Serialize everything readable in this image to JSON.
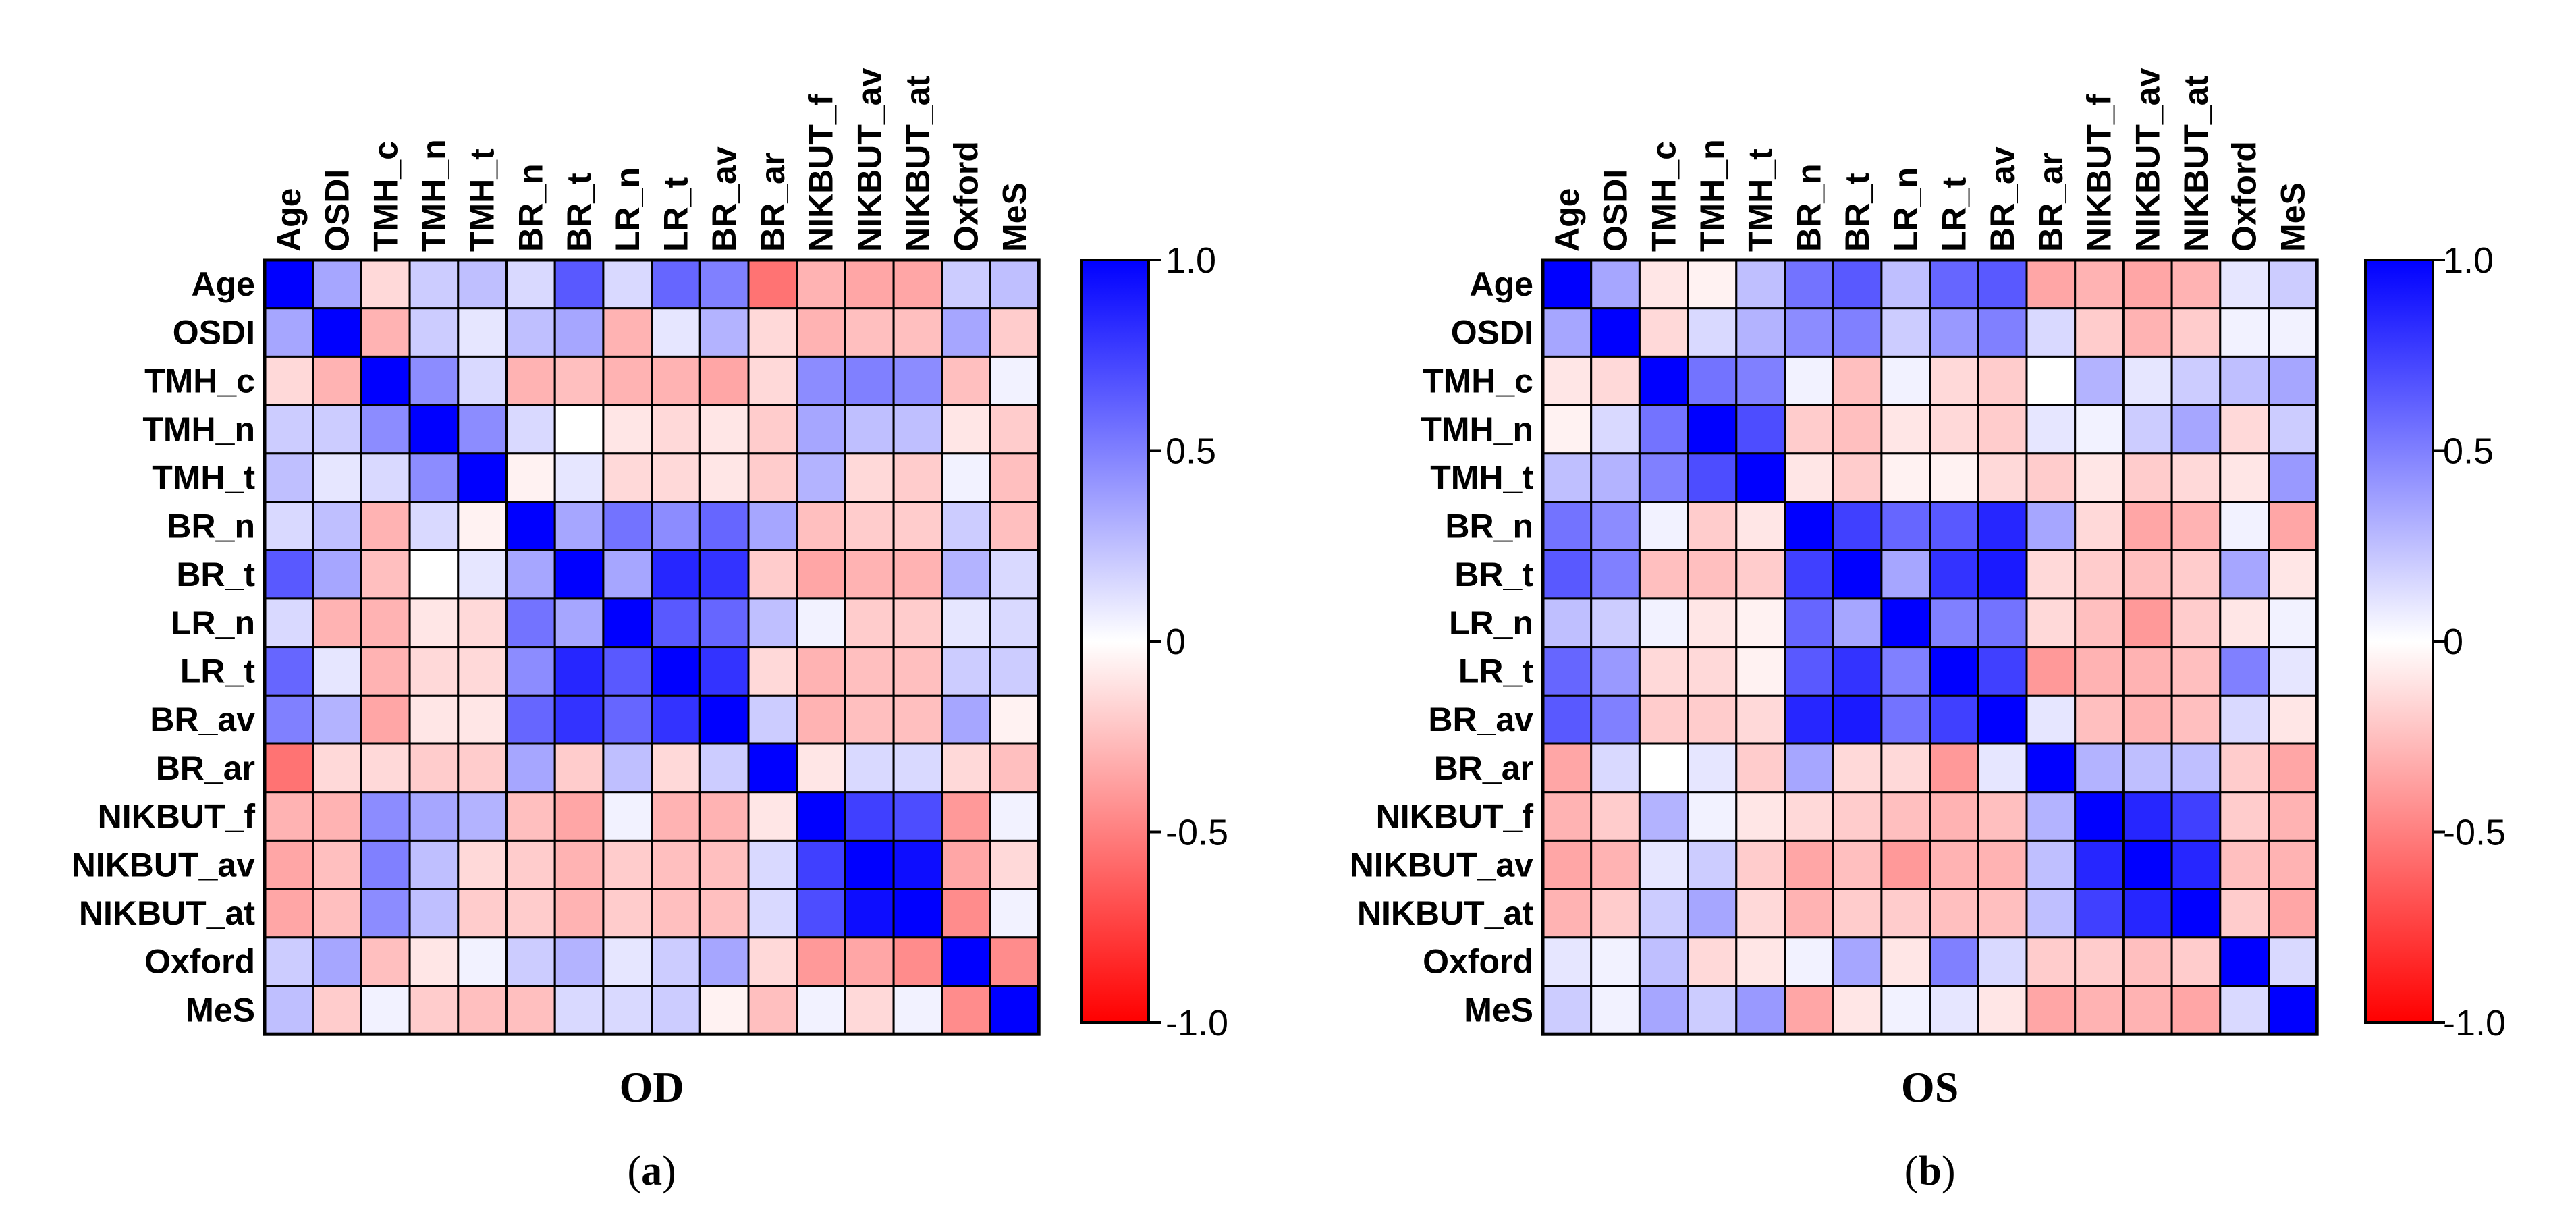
{
  "chart_data": [
    {
      "type": "heatmap",
      "title": "OD",
      "caption_letter": "a",
      "labels": [
        "Age",
        "OSDI",
        "TMH_c",
        "TMH_n",
        "TMH_t",
        "BR_n",
        "BR_t",
        "LR_n",
        "LR_t",
        "BR_av",
        "BR_ar",
        "NIKBUT_f",
        "NIKBUT_av",
        "NIKBUT_at",
        "Oxford",
        "MeS"
      ],
      "colorbar": {
        "range": [
          -1.0,
          1.0
        ],
        "ticks": [
          "1.0",
          "0.5",
          "0",
          "-0.5",
          "-1.0"
        ],
        "tick_values": [
          1.0,
          0.5,
          0,
          -0.5,
          -1.0
        ],
        "colors": {
          "low": "#ff0000",
          "mid": "#ffffff",
          "high": "#0000ff"
        }
      },
      "matrix": [
        [
          1.0,
          0.35,
          -0.15,
          0.2,
          0.25,
          0.15,
          0.65,
          0.15,
          0.6,
          0.5,
          -0.55,
          -0.3,
          -0.35,
          -0.35,
          0.2,
          0.25
        ],
        [
          0.35,
          1.0,
          -0.3,
          0.2,
          0.1,
          0.25,
          0.35,
          -0.3,
          0.1,
          0.3,
          -0.15,
          -0.3,
          -0.25,
          -0.25,
          0.35,
          -0.2
        ],
        [
          -0.15,
          -0.3,
          1.0,
          0.45,
          0.15,
          -0.3,
          -0.25,
          -0.3,
          -0.3,
          -0.35,
          -0.15,
          0.45,
          0.5,
          0.45,
          -0.25,
          0.05
        ],
        [
          0.2,
          0.2,
          0.45,
          1.0,
          0.45,
          0.15,
          0.0,
          -0.1,
          -0.15,
          -0.1,
          -0.2,
          0.35,
          0.25,
          0.25,
          -0.1,
          -0.2
        ],
        [
          0.25,
          0.1,
          0.15,
          0.45,
          1.0,
          -0.05,
          0.1,
          -0.15,
          -0.15,
          -0.1,
          -0.2,
          0.3,
          -0.15,
          -0.2,
          0.05,
          -0.25
        ],
        [
          0.15,
          0.25,
          -0.3,
          0.15,
          -0.05,
          1.0,
          0.35,
          0.55,
          0.45,
          0.6,
          0.35,
          -0.25,
          -0.2,
          -0.2,
          0.2,
          -0.25
        ],
        [
          0.65,
          0.35,
          -0.25,
          0.0,
          0.1,
          0.35,
          1.0,
          0.35,
          0.85,
          0.8,
          -0.2,
          -0.35,
          -0.3,
          -0.3,
          0.3,
          0.15
        ],
        [
          0.15,
          -0.3,
          -0.3,
          -0.1,
          -0.15,
          0.55,
          0.35,
          1.0,
          0.65,
          0.6,
          0.25,
          0.05,
          -0.2,
          -0.2,
          0.1,
          0.15
        ],
        [
          0.6,
          0.1,
          -0.3,
          -0.15,
          -0.15,
          0.45,
          0.85,
          0.65,
          1.0,
          0.8,
          -0.15,
          -0.3,
          -0.25,
          -0.25,
          0.2,
          0.2
        ],
        [
          0.5,
          0.3,
          -0.35,
          -0.1,
          -0.1,
          0.6,
          0.8,
          0.6,
          0.8,
          1.0,
          0.2,
          -0.3,
          -0.25,
          -0.25,
          0.35,
          -0.05
        ],
        [
          -0.55,
          -0.15,
          -0.15,
          -0.2,
          -0.2,
          0.35,
          -0.2,
          0.25,
          -0.15,
          0.2,
          1.0,
          -0.1,
          0.15,
          0.15,
          -0.15,
          -0.25
        ],
        [
          -0.3,
          -0.3,
          0.45,
          0.35,
          0.3,
          -0.25,
          -0.35,
          0.05,
          -0.3,
          -0.3,
          -0.1,
          1.0,
          0.75,
          0.7,
          -0.4,
          0.05
        ],
        [
          -0.35,
          -0.25,
          0.5,
          0.25,
          -0.15,
          -0.2,
          -0.3,
          -0.2,
          -0.25,
          -0.25,
          0.15,
          0.75,
          1.0,
          0.95,
          -0.35,
          -0.15
        ],
        [
          -0.35,
          -0.25,
          0.45,
          0.25,
          -0.2,
          -0.2,
          -0.3,
          -0.2,
          -0.25,
          -0.25,
          0.15,
          0.7,
          0.95,
          1.0,
          -0.45,
          0.05
        ],
        [
          0.2,
          0.35,
          -0.25,
          -0.1,
          0.05,
          0.2,
          0.3,
          0.1,
          0.2,
          0.35,
          -0.15,
          -0.4,
          -0.35,
          -0.45,
          1.0,
          -0.45
        ],
        [
          0.25,
          -0.2,
          0.05,
          -0.2,
          -0.25,
          -0.25,
          0.15,
          0.15,
          0.2,
          -0.05,
          -0.25,
          0.05,
          -0.15,
          0.05,
          -0.45,
          1.0
        ]
      ]
    },
    {
      "type": "heatmap",
      "title": "OS",
      "caption_letter": "b",
      "labels": [
        "Age",
        "OSDI",
        "TMH_c",
        "TMH_n",
        "TMH_t",
        "BR_n",
        "BR_t",
        "LR_n",
        "LR_t",
        "BR_av",
        "BR_ar",
        "NIKBUT_f",
        "NIKBUT_av",
        "NIKBUT_at",
        "Oxford",
        "MeS"
      ],
      "colorbar": {
        "range": [
          -1.0,
          1.0
        ],
        "ticks": [
          "1.0",
          "0.5",
          "0",
          "-0.5",
          "-1.0"
        ],
        "tick_values": [
          1.0,
          0.5,
          0,
          -0.5,
          -1.0
        ],
        "colors": {
          "low": "#ff0000",
          "mid": "#ffffff",
          "high": "#0000ff"
        }
      },
      "matrix": [
        [
          1.0,
          0.35,
          -0.1,
          -0.05,
          0.25,
          0.55,
          0.65,
          0.25,
          0.6,
          0.65,
          -0.35,
          -0.3,
          -0.35,
          -0.3,
          0.1,
          0.2
        ],
        [
          0.35,
          1.0,
          -0.15,
          0.15,
          0.3,
          0.45,
          0.5,
          0.2,
          0.4,
          0.5,
          0.15,
          -0.2,
          -0.3,
          -0.2,
          0.05,
          0.05
        ],
        [
          -0.1,
          -0.15,
          1.0,
          0.55,
          0.5,
          0.05,
          -0.25,
          0.05,
          -0.15,
          -0.2,
          0.0,
          0.3,
          0.1,
          0.2,
          0.25,
          0.35
        ],
        [
          -0.05,
          0.15,
          0.55,
          1.0,
          0.7,
          -0.2,
          -0.25,
          -0.1,
          -0.15,
          -0.2,
          0.1,
          0.05,
          0.2,
          0.35,
          -0.15,
          0.2
        ],
        [
          0.25,
          0.3,
          0.5,
          0.7,
          1.0,
          -0.1,
          -0.2,
          -0.05,
          -0.05,
          -0.15,
          -0.2,
          -0.1,
          -0.2,
          -0.15,
          -0.1,
          0.4
        ],
        [
          0.55,
          0.45,
          0.05,
          -0.2,
          -0.1,
          1.0,
          0.75,
          0.6,
          0.65,
          0.85,
          0.35,
          -0.15,
          -0.35,
          -0.3,
          0.05,
          -0.35
        ],
        [
          0.65,
          0.5,
          -0.25,
          -0.25,
          -0.2,
          0.75,
          1.0,
          0.35,
          0.8,
          0.9,
          -0.15,
          -0.2,
          -0.25,
          -0.2,
          0.35,
          -0.1
        ],
        [
          0.25,
          0.2,
          0.05,
          -0.1,
          -0.05,
          0.6,
          0.35,
          1.0,
          0.5,
          0.55,
          -0.15,
          -0.25,
          -0.4,
          -0.2,
          -0.1,
          0.05
        ],
        [
          0.6,
          0.4,
          -0.15,
          -0.15,
          -0.05,
          0.65,
          0.8,
          0.5,
          1.0,
          0.75,
          -0.4,
          -0.3,
          -0.3,
          -0.25,
          0.5,
          0.1
        ],
        [
          0.65,
          0.5,
          -0.2,
          -0.2,
          -0.15,
          0.85,
          0.9,
          0.55,
          0.75,
          1.0,
          0.1,
          -0.25,
          -0.3,
          -0.25,
          0.15,
          -0.1
        ],
        [
          -0.35,
          0.15,
          0.0,
          0.1,
          -0.2,
          0.35,
          -0.15,
          -0.15,
          -0.4,
          0.1,
          1.0,
          0.3,
          0.25,
          0.25,
          -0.2,
          -0.35
        ],
        [
          -0.3,
          -0.2,
          0.3,
          0.05,
          -0.1,
          -0.15,
          -0.2,
          -0.25,
          -0.3,
          -0.25,
          0.3,
          1.0,
          0.85,
          0.75,
          -0.2,
          -0.3
        ],
        [
          -0.35,
          -0.3,
          0.1,
          0.2,
          -0.2,
          -0.35,
          -0.25,
          -0.4,
          -0.3,
          -0.3,
          0.25,
          0.85,
          1.0,
          0.85,
          -0.25,
          -0.3
        ],
        [
          -0.3,
          -0.2,
          0.2,
          0.35,
          -0.15,
          -0.3,
          -0.2,
          -0.2,
          -0.25,
          -0.25,
          0.25,
          0.75,
          0.85,
          1.0,
          -0.2,
          -0.35
        ],
        [
          0.1,
          0.05,
          0.25,
          -0.15,
          -0.1,
          0.05,
          0.35,
          -0.1,
          0.5,
          0.15,
          -0.2,
          -0.2,
          -0.25,
          -0.2,
          1.0,
          0.15
        ],
        [
          0.2,
          0.05,
          0.35,
          0.2,
          0.4,
          -0.35,
          -0.1,
          0.05,
          0.1,
          -0.1,
          -0.35,
          -0.3,
          -0.3,
          -0.35,
          0.15,
          1.0
        ]
      ]
    }
  ]
}
